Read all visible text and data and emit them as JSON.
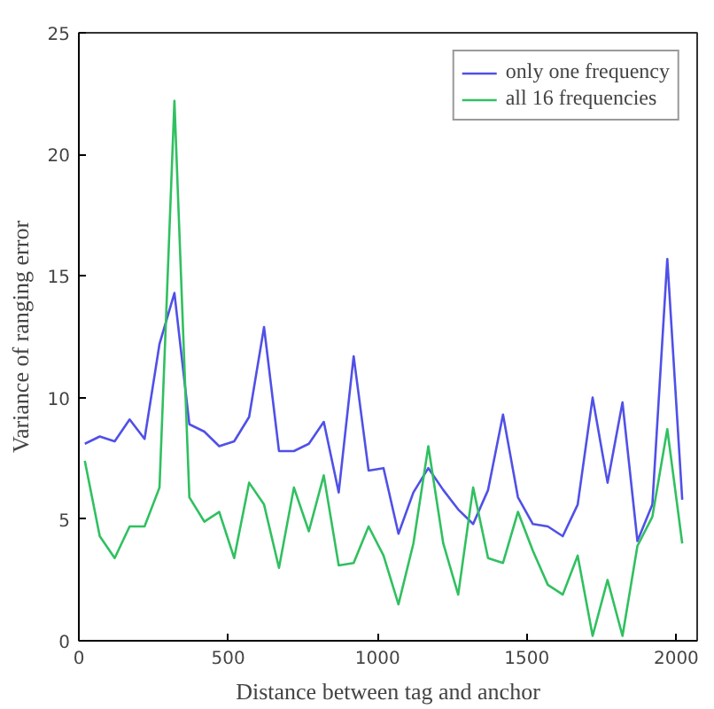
{
  "chart_data": {
    "type": "line",
    "xlabel": "Distance between tag and anchor",
    "ylabel": "Variance of ranging error",
    "x": [
      20,
      70,
      120,
      170,
      220,
      270,
      320,
      370,
      420,
      470,
      520,
      570,
      620,
      670,
      720,
      770,
      820,
      870,
      920,
      970,
      1020,
      1070,
      1120,
      1170,
      1220,
      1270,
      1320,
      1370,
      1420,
      1470,
      1520,
      1570,
      1620,
      1670,
      1720,
      1770,
      1820,
      1870,
      1920,
      1970,
      2020
    ],
    "series": [
      {
        "name": "only one frequency",
        "color": "#5050e8",
        "values": [
          8.1,
          8.4,
          8.2,
          9.1,
          8.3,
          12.2,
          14.3,
          8.9,
          8.6,
          8.0,
          8.2,
          9.2,
          12.9,
          7.8,
          7.8,
          8.1,
          9.0,
          6.1,
          11.7,
          7.0,
          7.1,
          4.4,
          6.1,
          7.1,
          6.2,
          5.4,
          4.8,
          6.2,
          9.3,
          5.9,
          4.8,
          4.7,
          4.3,
          5.6,
          10.0,
          6.5,
          9.8,
          4.1,
          5.6,
          15.7,
          5.8
        ]
      },
      {
        "name": "all 16 frequencies",
        "color": "#30c060",
        "values": [
          7.4,
          4.3,
          3.4,
          4.7,
          4.7,
          6.3,
          22.2,
          5.9,
          4.9,
          5.3,
          3.4,
          6.5,
          5.6,
          3.0,
          6.3,
          4.5,
          6.8,
          3.1,
          3.2,
          4.7,
          3.5,
          1.5,
          4.0,
          8.0,
          4.0,
          1.9,
          6.3,
          3.4,
          3.2,
          5.3,
          3.7,
          2.3,
          1.9,
          3.5,
          0.2,
          2.5,
          0.2,
          3.9,
          5.1,
          8.7,
          4.0
        ]
      }
    ],
    "xlim": [
      0,
      2070
    ],
    "ylim": [
      0,
      25
    ],
    "xticks": [
      0,
      500,
      1000,
      1500,
      2000
    ],
    "yticks": [
      0,
      5,
      10,
      15,
      20,
      25
    ],
    "grid": false,
    "legend": "top right",
    "marker": "none",
    "line_style": "solid"
  }
}
